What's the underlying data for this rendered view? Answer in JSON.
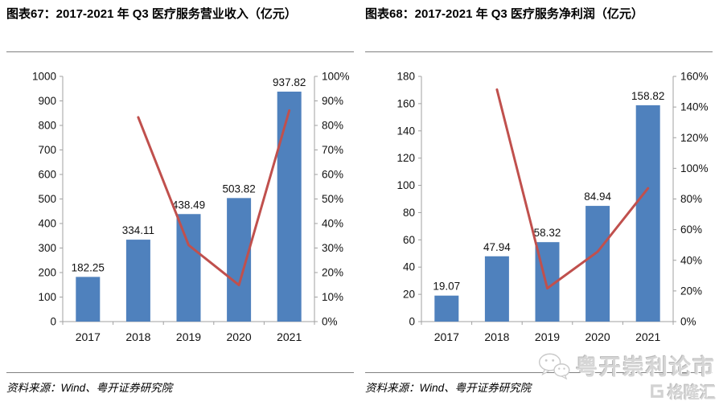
{
  "colors": {
    "bar_blue": "#4F81BD",
    "line_red": "#C0504D",
    "axis_gray": "#A0A0A0",
    "divider_gray": "#808080",
    "watermark_gray": "#D6D6D6"
  },
  "watermark": {
    "icon": "wechat-icon",
    "brand": "粤开崇利论市",
    "logo_icon": "gelonghui-icon",
    "logo_text": "格隆汇"
  },
  "chart_data": [
    {
      "type": "bar",
      "title": "图表67：2017-2021 年 Q3 医疗服务营业收入（亿元）",
      "source": "资料来源：Wind、粤开证券研究院",
      "categories": [
        "2017",
        "2018",
        "2019",
        "2020",
        "2021"
      ],
      "series": [
        {
          "name": "operating-revenue",
          "type": "bar",
          "axis": "left",
          "color": "#4F81BD",
          "values": [
            182.25,
            334.11,
            438.49,
            503.82,
            937.82
          ],
          "labels": [
            "182.25",
            "334.11",
            "438.49",
            "503.82",
            "937.82"
          ]
        },
        {
          "name": "yoy-growth",
          "type": "line",
          "axis": "right",
          "color": "#C0504D",
          "values": [
            null,
            83.3,
            31.2,
            14.9,
            86.1
          ]
        }
      ],
      "left_axis": {
        "min": 0,
        "max": 1000,
        "step": 100,
        "ticks": [
          "0",
          "100",
          "200",
          "300",
          "400",
          "500",
          "600",
          "700",
          "800",
          "900",
          "1000"
        ]
      },
      "right_axis": {
        "min": 0,
        "max": 100,
        "step": 10,
        "suffix": "%",
        "ticks": [
          "0%",
          "10%",
          "20%",
          "30%",
          "40%",
          "50%",
          "60%",
          "70%",
          "80%",
          "90%",
          "100%"
        ]
      },
      "grid": false,
      "legend": "none"
    },
    {
      "type": "bar",
      "title": "图表68：2017-2021 年 Q3 医疗服务净利润（亿元）",
      "source": "资料来源：Wind、粤开证券研究院",
      "categories": [
        "2017",
        "2018",
        "2019",
        "2020",
        "2021"
      ],
      "series": [
        {
          "name": "net-profit",
          "type": "bar",
          "axis": "left",
          "color": "#4F81BD",
          "values": [
            19.07,
            47.94,
            58.32,
            84.94,
            158.82
          ],
          "labels": [
            "19.07",
            "47.94",
            "58.32",
            "84.94",
            "158.82"
          ]
        },
        {
          "name": "yoy-growth",
          "type": "line",
          "axis": "right",
          "color": "#C0504D",
          "values": [
            null,
            151.4,
            21.7,
            45.6,
            87.0
          ]
        }
      ],
      "left_axis": {
        "min": 0,
        "max": 180,
        "step": 20,
        "ticks": [
          "0",
          "20",
          "40",
          "60",
          "80",
          "100",
          "120",
          "140",
          "160",
          "180"
        ]
      },
      "right_axis": {
        "min": 0,
        "max": 160,
        "step": 20,
        "suffix": "%",
        "ticks": [
          "0%",
          "20%",
          "40%",
          "60%",
          "80%",
          "100%",
          "120%",
          "140%",
          "160%"
        ]
      },
      "grid": false,
      "legend": "none"
    }
  ]
}
